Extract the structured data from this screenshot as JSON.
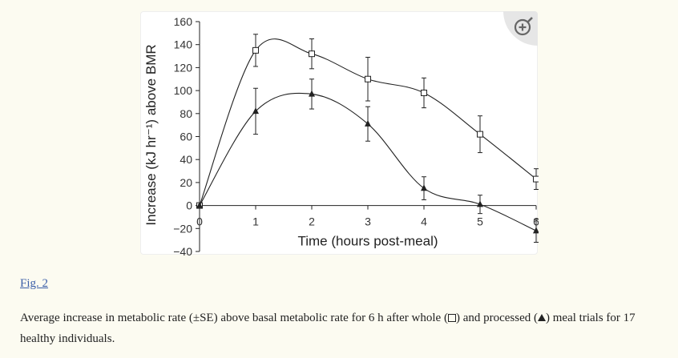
{
  "chart_data": {
    "type": "line",
    "xlabel": "Time (hours post-meal)",
    "ylabel": "Increase (kJ hr⁻¹) above BMR",
    "x": [
      0,
      1,
      2,
      3,
      4,
      5,
      6
    ],
    "xlim": [
      0,
      6
    ],
    "ylim": [
      -40,
      160
    ],
    "xticks": [
      "0",
      "1",
      "2",
      "3",
      "4",
      "5",
      "6"
    ],
    "yticks": [
      "160",
      "140",
      "120",
      "100",
      "80",
      "60",
      "40",
      "20",
      "0",
      "−20",
      "−40"
    ],
    "series": [
      {
        "marker": "square-open",
        "values": [
          0,
          135,
          132,
          110,
          98,
          62,
          23
        ],
        "error": [
          0,
          14,
          13,
          19,
          13,
          16,
          9
        ]
      },
      {
        "marker": "triangle-filled",
        "values": [
          0,
          82,
          97,
          71,
          15,
          1,
          -22
        ],
        "error": [
          0,
          20,
          13,
          15,
          10,
          8,
          10
        ]
      }
    ],
    "line_color": "#222222",
    "grid": false,
    "legend": "none"
  },
  "zoom_icon": "zoom-in-icon",
  "figure_link": "Fig. 2",
  "caption": {
    "part1": "Average increase in metabolic rate (±SE) above basal metabolic rate for 6 h after whole (",
    "part2": ") and processed (",
    "part3": ") meal trials for 17 healthy individuals."
  }
}
